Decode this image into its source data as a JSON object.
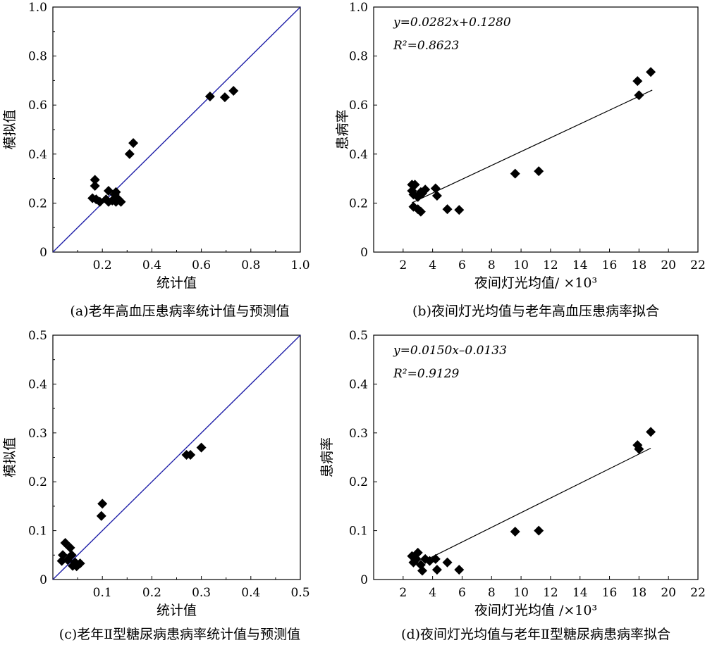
{
  "figure": {
    "panels": [
      {
        "id": "a",
        "caption": "(a)老年高血压患病率统计值与预测值"
      },
      {
        "id": "b",
        "caption": "(b)夜间灯光均值与老年高血压患病率拟合"
      },
      {
        "id": "c",
        "caption": "(c)老年Ⅱ型糖尿病患病率统计值与预测值"
      },
      {
        "id": "d",
        "caption": "(d)夜间灯光均值与老年Ⅱ型糖尿病患病率拟合"
      }
    ]
  },
  "colors": {
    "reference_line": "#1f1fa8",
    "points": "#000000",
    "fit_line": "#000000"
  },
  "chart_data": [
    {
      "panel": "a",
      "type": "scatter",
      "title": "",
      "xlabel": "统计值",
      "ylabel": "模拟值",
      "xlim": [
        0,
        1.0
      ],
      "ylim": [
        0,
        1.0
      ],
      "xticks": [
        "0.2",
        "0.4",
        "0.6",
        "0.8",
        "1.0"
      ],
      "yticks": [
        "0",
        "0.2",
        "0.4",
        "0.6",
        "0.8",
        "1.0"
      ],
      "reference_line": "y=x",
      "marker": "diamond",
      "points": [
        [
          0.17,
          0.295
        ],
        [
          0.17,
          0.27
        ],
        [
          0.16,
          0.22
        ],
        [
          0.175,
          0.215
        ],
        [
          0.19,
          0.205
        ],
        [
          0.225,
          0.25
        ],
        [
          0.215,
          0.215
        ],
        [
          0.225,
          0.205
        ],
        [
          0.24,
          0.21
        ],
        [
          0.25,
          0.235
        ],
        [
          0.255,
          0.245
        ],
        [
          0.265,
          0.215
        ],
        [
          0.255,
          0.205
        ],
        [
          0.275,
          0.205
        ],
        [
          0.31,
          0.4
        ],
        [
          0.325,
          0.445
        ],
        [
          0.635,
          0.635
        ],
        [
          0.695,
          0.632
        ],
        [
          0.73,
          0.658
        ]
      ]
    },
    {
      "panel": "b",
      "type": "scatter",
      "title": "",
      "xlabel": "夜间灯光均值/ ×10³",
      "ylabel": "患病率",
      "xlim": [
        0,
        22
      ],
      "ylim": [
        0,
        1.0
      ],
      "xticks": [
        "2",
        "4",
        "6",
        "8",
        "10",
        "12",
        "14",
        "16",
        "18",
        "20",
        "22"
      ],
      "yticks": [
        "0",
        "0.2",
        "0.4",
        "0.6",
        "0.8",
        "1.0"
      ],
      "equation": "y=0.0282x+0.1280",
      "r_squared": "R²=0.8623",
      "fit": {
        "slope": 0.0282,
        "intercept": 0.128,
        "x_range": [
          2.6,
          18.9
        ]
      },
      "marker": "diamond",
      "points": [
        [
          2.6,
          0.275
        ],
        [
          2.8,
          0.275
        ],
        [
          2.6,
          0.25
        ],
        [
          2.7,
          0.235
        ],
        [
          3.0,
          0.225
        ],
        [
          3.2,
          0.245
        ],
        [
          3.5,
          0.255
        ],
        [
          3.3,
          0.24
        ],
        [
          4.2,
          0.26
        ],
        [
          4.3,
          0.23
        ],
        [
          2.7,
          0.185
        ],
        [
          3.0,
          0.175
        ],
        [
          3.2,
          0.165
        ],
        [
          5.0,
          0.175
        ],
        [
          5.8,
          0.172
        ],
        [
          9.6,
          0.32
        ],
        [
          11.2,
          0.33
        ],
        [
          17.9,
          0.698
        ],
        [
          18.0,
          0.64
        ],
        [
          18.8,
          0.735
        ]
      ]
    },
    {
      "panel": "c",
      "type": "scatter",
      "title": "",
      "xlabel": "统计值",
      "ylabel": "模拟值",
      "xlim": [
        0,
        0.5
      ],
      "ylim": [
        0,
        0.5
      ],
      "xticks": [
        "0.1",
        "0.2",
        "0.3",
        "0.4",
        "0.5"
      ],
      "yticks": [
        "0",
        "0.1",
        "0.2",
        "0.3",
        "0.4",
        "0.5"
      ],
      "reference_line": "y=x",
      "marker": "diamond",
      "points": [
        [
          0.025,
          0.075
        ],
        [
          0.02,
          0.05
        ],
        [
          0.018,
          0.038
        ],
        [
          0.035,
          0.065
        ],
        [
          0.038,
          0.05
        ],
        [
          0.03,
          0.04
        ],
        [
          0.04,
          0.028
        ],
        [
          0.045,
          0.035
        ],
        [
          0.05,
          0.03
        ],
        [
          0.055,
          0.033
        ],
        [
          0.048,
          0.027
        ],
        [
          0.1,
          0.155
        ],
        [
          0.098,
          0.13
        ],
        [
          0.27,
          0.255
        ],
        [
          0.278,
          0.255
        ],
        [
          0.3,
          0.27
        ]
      ]
    },
    {
      "panel": "d",
      "type": "scatter",
      "title": "",
      "xlabel": "夜间灯光均值 /×10³",
      "ylabel": "患病率",
      "xlim": [
        0,
        22
      ],
      "ylim": [
        0,
        0.5
      ],
      "xticks": [
        "2",
        "4",
        "6",
        "8",
        "10",
        "12",
        "14",
        "16",
        "18",
        "20",
        "22"
      ],
      "yticks": [
        "0",
        "0.1",
        "0.2",
        "0.3",
        "0.4",
        "0.5"
      ],
      "equation": "y=0.0150x–0.0133",
      "r_squared": "R²=0.9129",
      "fit": {
        "slope": 0.015,
        "intercept": -0.0133,
        "x_range": [
          3.5,
          18.8
        ]
      },
      "marker": "diamond",
      "points": [
        [
          2.6,
          0.048
        ],
        [
          2.7,
          0.035
        ],
        [
          2.9,
          0.042
        ],
        [
          3.0,
          0.055
        ],
        [
          3.2,
          0.03
        ],
        [
          3.3,
          0.018
        ],
        [
          3.5,
          0.042
        ],
        [
          3.8,
          0.038
        ],
        [
          4.2,
          0.042
        ],
        [
          4.3,
          0.02
        ],
        [
          5.0,
          0.035
        ],
        [
          5.8,
          0.02
        ],
        [
          9.6,
          0.098
        ],
        [
          11.2,
          0.1
        ],
        [
          17.9,
          0.275
        ],
        [
          18.0,
          0.267
        ],
        [
          18.8,
          0.302
        ]
      ]
    }
  ]
}
